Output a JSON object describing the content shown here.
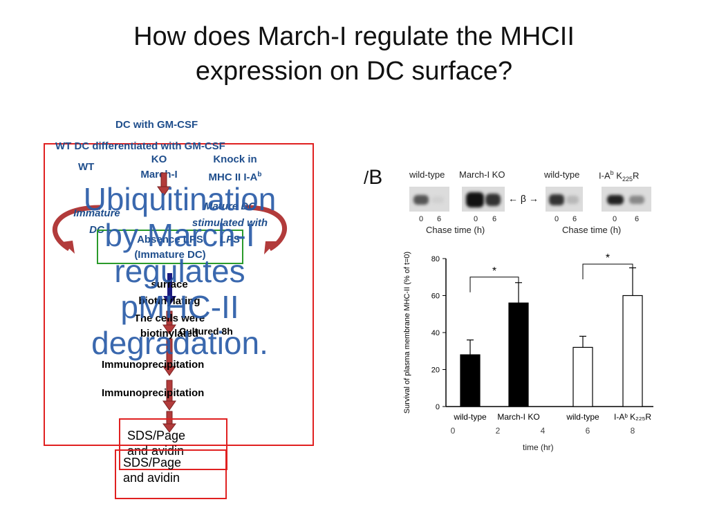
{
  "slide": {
    "title_line1": "How does March-I regulate the MHCII",
    "title_line2": "expression on DC surface?"
  },
  "flow": {
    "dc_gmcsf": "DC with GM-CSF",
    "wt_dc": "WT DC differentiated with GM-CSF",
    "wt": "WT",
    "ko": "KO",
    "march_i": "March-I",
    "knock_in": "Knock in",
    "mhc_ia": "MHC II I-A",
    "mhc_sup": "b",
    "immature": "Immature",
    "dc": "DC",
    "mature_dc": "Mature DC",
    "stimulated_with": "stimulated with",
    "lps": "LPS",
    "absence_lps": "Absence LPS",
    "immature_dc_paren": "(Immature DC)",
    "surface": "surface",
    "biotinylating": "biotinylating",
    "cells_were": "The cells were",
    "biotinylated": "biotinylated",
    "cultured": "Cultured 8h",
    "ip1": "Immunoprecipitation",
    "ip2": "Immunoprecipitation",
    "sds1_line1": "SDS/Page",
    "sds1_line2": "and avidin",
    "sds2_line1": "SDS/Page",
    "sds2_line2": "and avidin"
  },
  "overlay_text": {
    "line1": "Ubiquitination",
    "line2": "by March-I",
    "line3": "regulates",
    "line4": "pMHC-II",
    "line5": "degradation."
  },
  "figure": {
    "panel_label": "B",
    "blot_labels": [
      "wild-type",
      "March-I KO",
      "wild-type",
      "I-A",
      "K"
    ],
    "ia_sup": "b",
    "k_sub": "225",
    "k_suffix": "R",
    "beta_arrow": "← β →",
    "lane_times": [
      "0",
      "6",
      "0",
      "6",
      "0",
      "6",
      "0",
      "6"
    ],
    "chase_label": "Chase time (h)",
    "chase_label2": "Chase time (h)",
    "bottom_ticks": [
      "0",
      "2",
      "4",
      "6",
      "8"
    ],
    "time_label": "time (hr)",
    "star": "*"
  },
  "chart_data": {
    "type": "bar",
    "categories": [
      "wild-type",
      "March-I KO",
      "wild-type",
      "I-Aᵇ K₂₂₅R"
    ],
    "values": [
      28,
      56,
      32,
      60
    ],
    "errors": [
      8,
      11,
      6,
      15
    ],
    "fill": [
      "#000000",
      "#000000",
      "#ffffff",
      "#ffffff"
    ],
    "ylabel": "Survival of plasma membrane MHC-II (% of t=0)",
    "ylim": [
      0,
      80
    ],
    "yticks": [
      "0",
      "20",
      "40",
      "60",
      "80"
    ]
  }
}
